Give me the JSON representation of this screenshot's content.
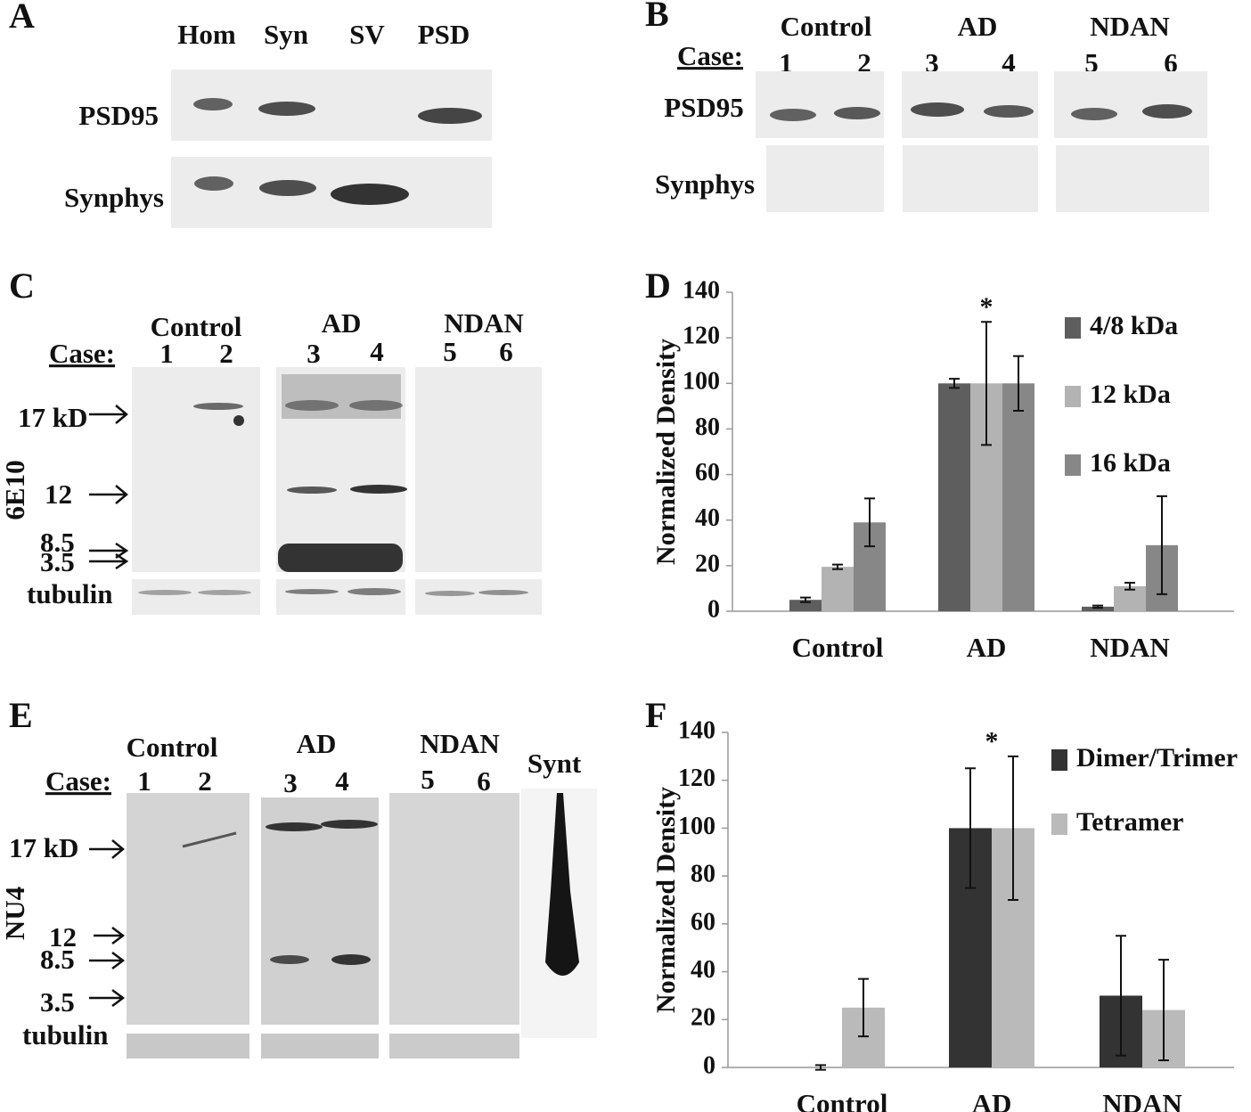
{
  "panels": {
    "a": {
      "letter": "A",
      "lanes": [
        "Hom",
        "Syn",
        "SV",
        "PSD"
      ],
      "rows": [
        "PSD95",
        "Synphys"
      ]
    },
    "b": {
      "letter": "B",
      "groups": [
        "Control",
        "AD",
        "NDAN"
      ],
      "case_label": "Case:",
      "lanes": [
        "1",
        "2",
        "3",
        "4",
        "5",
        "6"
      ],
      "rows": [
        "PSD95",
        "Synphys"
      ]
    },
    "c": {
      "letter": "C",
      "groups": [
        "Control",
        "AD",
        "NDAN"
      ],
      "case_label": "Case:",
      "lanes": [
        "1",
        "2",
        "3",
        "4",
        "5",
        "6"
      ],
      "antibody": "6E10",
      "markers": [
        "17 kD",
        "12",
        "8.5",
        "3.5"
      ],
      "loading": "tubulin"
    },
    "e": {
      "letter": "E",
      "groups": [
        "Control",
        "AD",
        "NDAN",
        "Synt"
      ],
      "case_label": "Case:",
      "lanes": [
        "1",
        "2",
        "3",
        "4",
        "5",
        "6"
      ],
      "antibody": "NU4",
      "markers": [
        "17 kD",
        "12",
        "8.5",
        "3.5"
      ],
      "loading": "tubulin"
    }
  },
  "chart_data": [
    {
      "type": "bar",
      "panel": "D",
      "y_label": "Normalized Density",
      "annotation": "*",
      "categories": [
        "Control",
        "AD",
        "NDAN"
      ],
      "series": [
        {
          "name": "4/8 kDa",
          "color": "#5e5e5e",
          "values": [
            5,
            100,
            2
          ],
          "errors": [
            1,
            2,
            0.5
          ]
        },
        {
          "name": "12 kDa",
          "color": "#b3b3b3",
          "values": [
            19.5,
            100,
            11
          ],
          "errors": [
            1,
            27,
            1.5
          ]
        },
        {
          "name": "16 kDa",
          "color": "#878787",
          "values": [
            39,
            100,
            29
          ],
          "errors": [
            10.5,
            12,
            21.5
          ]
        }
      ],
      "ylim": [
        0,
        140
      ],
      "yticks": [
        0,
        20,
        40,
        60,
        80,
        100,
        120,
        140
      ],
      "legend": "right"
    },
    {
      "type": "bar",
      "panel": "F",
      "y_label": "Normalized Density",
      "annotation": "*",
      "categories": [
        "Control",
        "AD",
        "NDAN"
      ],
      "series": [
        {
          "name": "Dimer/Trimer",
          "color": "#333333",
          "values": [
            0,
            100,
            30
          ],
          "errors": [
            1,
            25,
            25
          ]
        },
        {
          "name": "Tetramer",
          "color": "#bababa",
          "values": [
            25,
            100,
            24
          ],
          "errors": [
            12,
            30,
            21
          ]
        }
      ],
      "ylim": [
        0,
        140
      ],
      "yticks": [
        0,
        20,
        40,
        60,
        80,
        100,
        120,
        140
      ],
      "legend": "right"
    }
  ]
}
